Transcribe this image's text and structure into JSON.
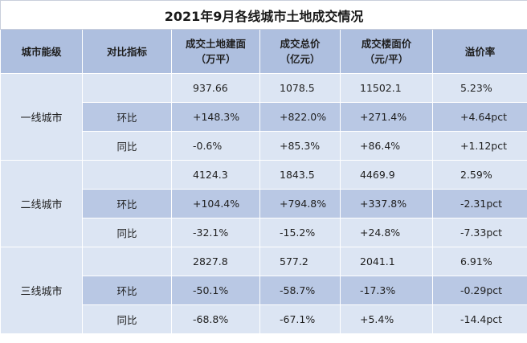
{
  "title": "2021年9月各线城市土地成交情况",
  "headers": [
    "城市能级",
    "对比指标",
    "成交土地建面\n（万平）",
    "成交总价\n（亿元）",
    "成交楼面价\n（元/平）",
    "溢价率"
  ],
  "groups": [
    {
      "city": "一线城市",
      "rows": [
        {
          "metric": "",
          "values": [
            "937.66",
            "1078.5",
            "11502.1",
            "5.23%"
          ]
        },
        {
          "metric": "环比",
          "values": [
            "+148.3%",
            "+822.0%",
            "+271.4%",
            "+4.64pct"
          ]
        },
        {
          "metric": "同比",
          "values": [
            "-0.6%",
            "+85.3%",
            "+86.4%",
            "+1.12pct"
          ]
        }
      ]
    },
    {
      "city": "二线城市",
      "rows": [
        {
          "metric": "",
          "values": [
            "4124.3",
            "1843.5",
            "4469.9",
            "2.59%"
          ]
        },
        {
          "metric": "环比",
          "values": [
            "+104.4%",
            "+794.8%",
            "+337.8%",
            "-2.31pct"
          ]
        },
        {
          "metric": "同比",
          "values": [
            "-32.1%",
            "-15.2%",
            "+24.8%",
            "-7.33pct"
          ]
        }
      ]
    },
    {
      "city": "三线城市",
      "rows": [
        {
          "metric": "",
          "values": [
            "2827.8",
            "577.2",
            "2041.1",
            "6.91%"
          ]
        },
        {
          "metric": "环比",
          "values": [
            "-50.1%",
            "-58.7%",
            "-17.3%",
            "-0.29pct"
          ]
        },
        {
          "metric": "同比",
          "values": [
            "-68.8%",
            "-67.1%",
            "+5.4%",
            "-14.4pct"
          ]
        }
      ]
    }
  ]
}
